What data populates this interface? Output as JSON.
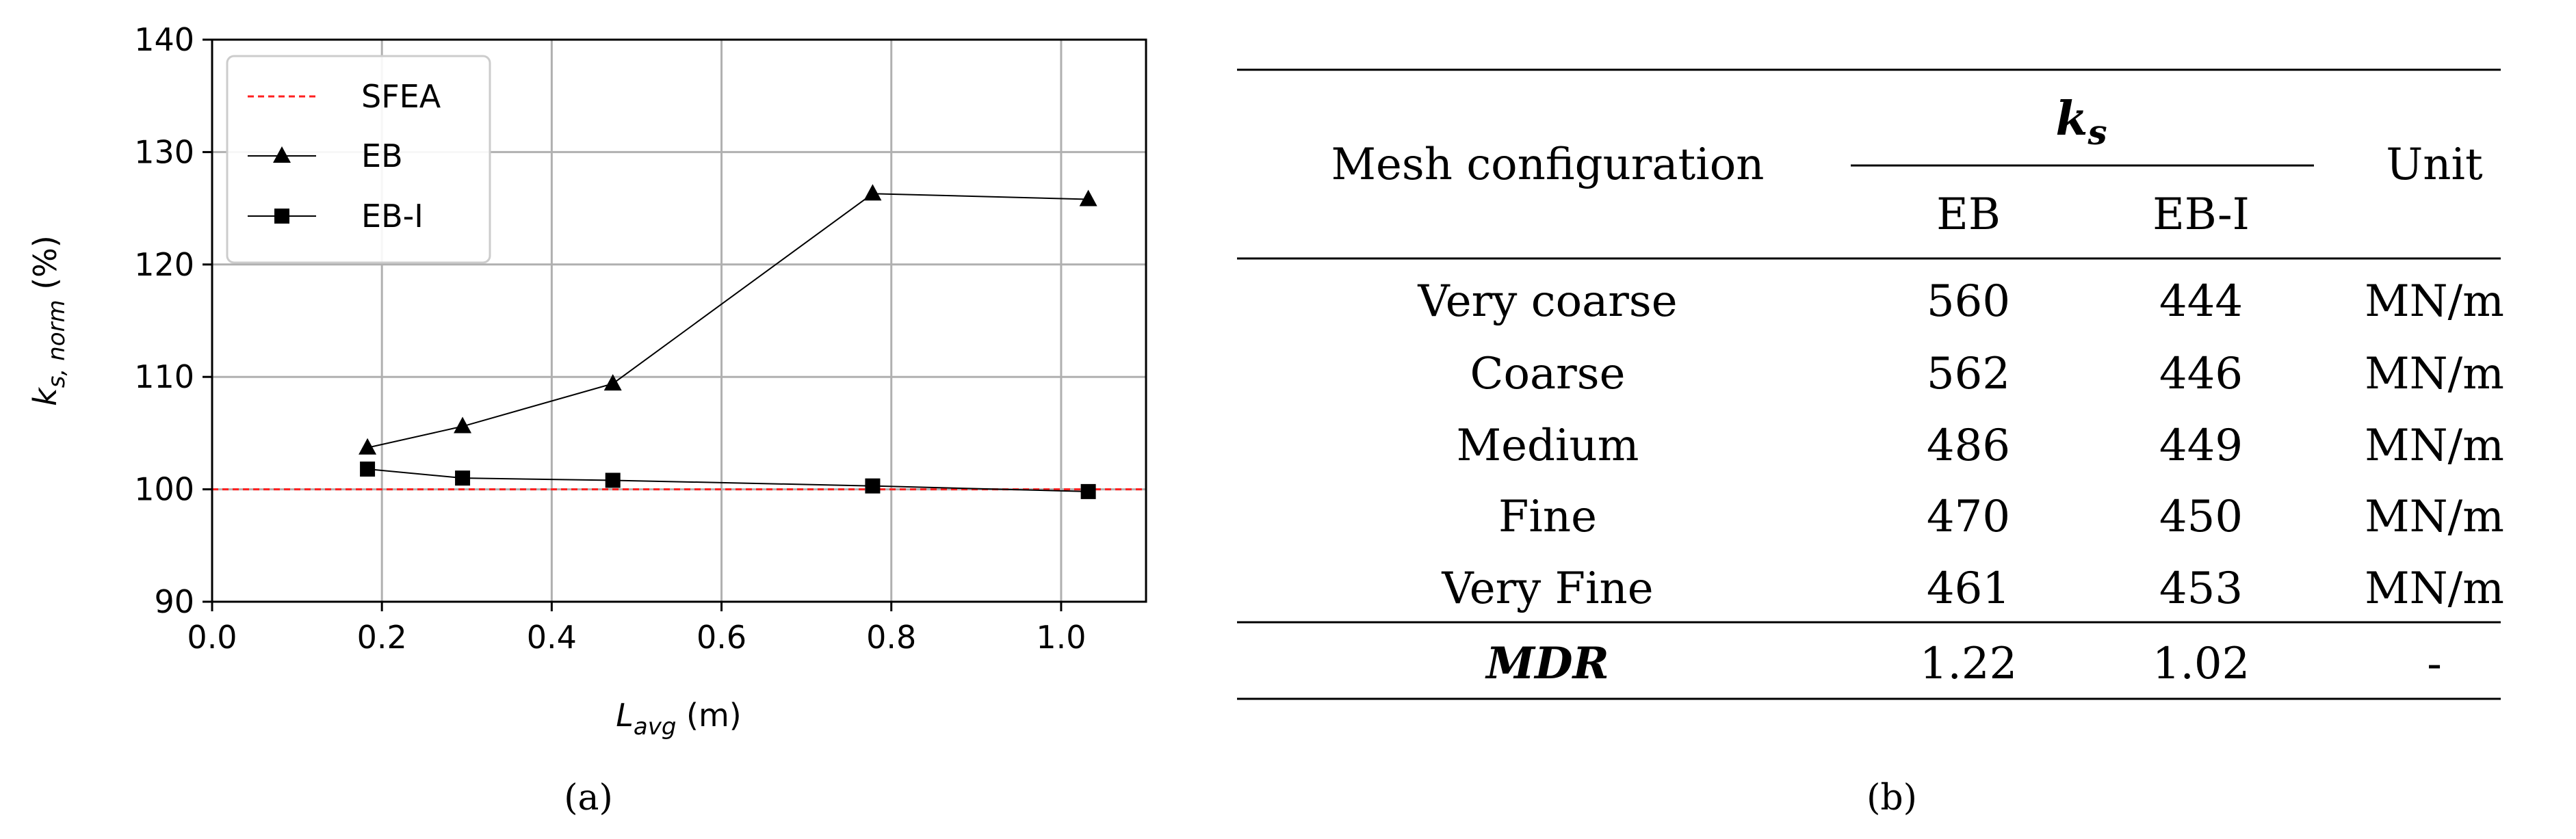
{
  "figure": {
    "panel_a_caption": "(a)",
    "panel_b_caption": "(b)"
  },
  "chart_data": {
    "type": "line",
    "xlabel_main": "L",
    "xlabel_sub": "avg",
    "xlabel_unit": " (m)",
    "ylabel_main": "k",
    "ylabel_sub": "s, norm",
    "ylabel_unit": " (%)",
    "xlim": [
      0.0,
      1.1
    ],
    "ylim": [
      90,
      140
    ],
    "x_ticks": [
      0.0,
      0.2,
      0.4,
      0.6,
      0.8,
      1.0
    ],
    "x_tick_labels": [
      "0.0",
      "0.2",
      "0.4",
      "0.6",
      "0.8",
      "1.0"
    ],
    "y_ticks": [
      90,
      100,
      110,
      120,
      130,
      140
    ],
    "y_tick_labels": [
      "90",
      "100",
      "110",
      "120",
      "130",
      "140"
    ],
    "grid": true,
    "legend_position": "top-left",
    "reference_line": {
      "name": "SFEA",
      "y": 100,
      "color": "#ff2020",
      "style": "dashed"
    },
    "series": [
      {
        "name": "EB",
        "marker": "triangle",
        "color": "#000000",
        "x": [
          0.183,
          0.295,
          0.472,
          0.778,
          1.032
        ],
        "y": [
          103.7,
          105.6,
          109.4,
          126.3,
          125.8
        ]
      },
      {
        "name": "EB-I",
        "marker": "square",
        "color": "#000000",
        "x": [
          0.183,
          0.295,
          0.472,
          0.778,
          1.032
        ],
        "y": [
          101.8,
          101.0,
          100.8,
          100.3,
          99.8
        ]
      }
    ]
  },
  "table": {
    "header_mesh": "Mesh configuration",
    "header_k_main": "k",
    "header_k_sub": "s",
    "header_unit": "Unit",
    "sub_headers": [
      "EB",
      "EB-I"
    ],
    "rows": [
      {
        "mesh": "Very coarse",
        "eb": "560",
        "ebi": "444",
        "unit": "MN/m"
      },
      {
        "mesh": "Coarse",
        "eb": "562",
        "ebi": "446",
        "unit": "MN/m"
      },
      {
        "mesh": "Medium",
        "eb": "486",
        "ebi": "449",
        "unit": "MN/m"
      },
      {
        "mesh": "Fine",
        "eb": "470",
        "ebi": "450",
        "unit": "MN/m"
      },
      {
        "mesh": "Very Fine",
        "eb": "461",
        "ebi": "453",
        "unit": "MN/m"
      }
    ],
    "summary": {
      "mesh": "MDR",
      "eb": "1.22",
      "ebi": "1.02",
      "unit": "-"
    }
  }
}
